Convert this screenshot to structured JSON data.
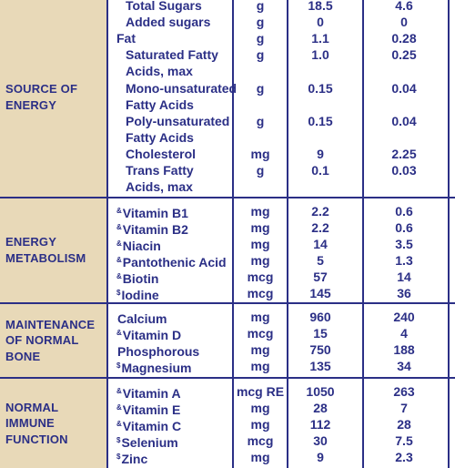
{
  "sections": [
    {
      "category": [
        "SOURCE OF",
        "ENERGY"
      ],
      "rows": [
        {
          "name": "Total Sugars",
          "unit": "g",
          "v1": "18.5",
          "v2": "4.6",
          "indent": true
        },
        {
          "name": "Added sugars",
          "unit": "g",
          "v1": "0",
          "v2": "0",
          "indent": true
        },
        {
          "name": "Fat",
          "unit": "g",
          "v1": "1.1",
          "v2": "0.28",
          "indent": false
        },
        {
          "name": "Saturated Fatty",
          "name2": "Acids, max",
          "unit": "g",
          "v1": "1.0",
          "v2": "0.25",
          "indent": true
        },
        {
          "name": "Mono-unsaturated",
          "name2": "Fatty Acids",
          "unit": "g",
          "v1": "0.15",
          "v2": "0.04",
          "indent": true
        },
        {
          "name": "Poly-unsaturated",
          "name2": "Fatty Acids",
          "unit": "g",
          "v1": "0.15",
          "v2": "0.04",
          "indent": true
        },
        {
          "name": "Cholesterol",
          "unit": "mg",
          "v1": "9",
          "v2": "2.25",
          "indent": true
        },
        {
          "name": "Trans Fatty",
          "name2": "Acids, max",
          "unit": "g",
          "v1": "0.1",
          "v2": "0.03",
          "indent": true
        }
      ]
    },
    {
      "category": [
        "ENERGY",
        "METABOLISM"
      ],
      "rows": [
        {
          "mark": "&",
          "name": "Vitamin B1",
          "unit": "mg",
          "v1": "2.2",
          "v2": "0.6"
        },
        {
          "mark": "&",
          "name": "Vitamin B2",
          "unit": "mg",
          "v1": "2.2",
          "v2": "0.6"
        },
        {
          "mark": "&",
          "name": "Niacin",
          "unit": "mg",
          "v1": "14",
          "v2": "3.5"
        },
        {
          "mark": "&",
          "name": "Pantothenic Acid",
          "unit": "mg",
          "v1": "5",
          "v2": "1.3"
        },
        {
          "mark": "&",
          "name": "Biotin",
          "unit": "mcg",
          "v1": "57",
          "v2": "14"
        },
        {
          "mark": "$",
          "name": "Iodine",
          "unit": "mcg",
          "v1": "145",
          "v2": "36"
        }
      ]
    },
    {
      "category": [
        "MAINTENANCE",
        "OF NORMAL BONE"
      ],
      "rows": [
        {
          "mark": "",
          "name": "Calcium",
          "unit": "mg",
          "v1": "960",
          "v2": "240"
        },
        {
          "mark": "&",
          "name": "Vitamin D",
          "unit": "mcg",
          "v1": "15",
          "v2": "4"
        },
        {
          "mark": "",
          "name": "Phosphorous",
          "unit": "mg",
          "v1": "750",
          "v2": "188"
        },
        {
          "mark": "$",
          "name": "Magnesium",
          "unit": "mg",
          "v1": "135",
          "v2": "34"
        }
      ]
    },
    {
      "category": [
        "NORMAL IMMUNE",
        "FUNCTION"
      ],
      "rows": [
        {
          "mark": "&",
          "name": "Vitamin A",
          "unit": "mcg RE",
          "v1": "1050",
          "v2": "263"
        },
        {
          "mark": "&",
          "name": "Vitamin E",
          "unit": "mg",
          "v1": "28",
          "v2": "7"
        },
        {
          "mark": "&",
          "name": "Vitamin C",
          "unit": "mg",
          "v1": "112",
          "v2": "28"
        },
        {
          "mark": "$",
          "name": "Selenium",
          "unit": "mcg",
          "v1": "30",
          "v2": "7.5"
        },
        {
          "mark": "$",
          "name": "Zinc",
          "unit": "mg",
          "v1": "9",
          "v2": "2.3"
        }
      ]
    }
  ],
  "colors": {
    "ink": "#2b2f86",
    "category_bg": "#e8d9b8",
    "background": "#ffffff"
  }
}
